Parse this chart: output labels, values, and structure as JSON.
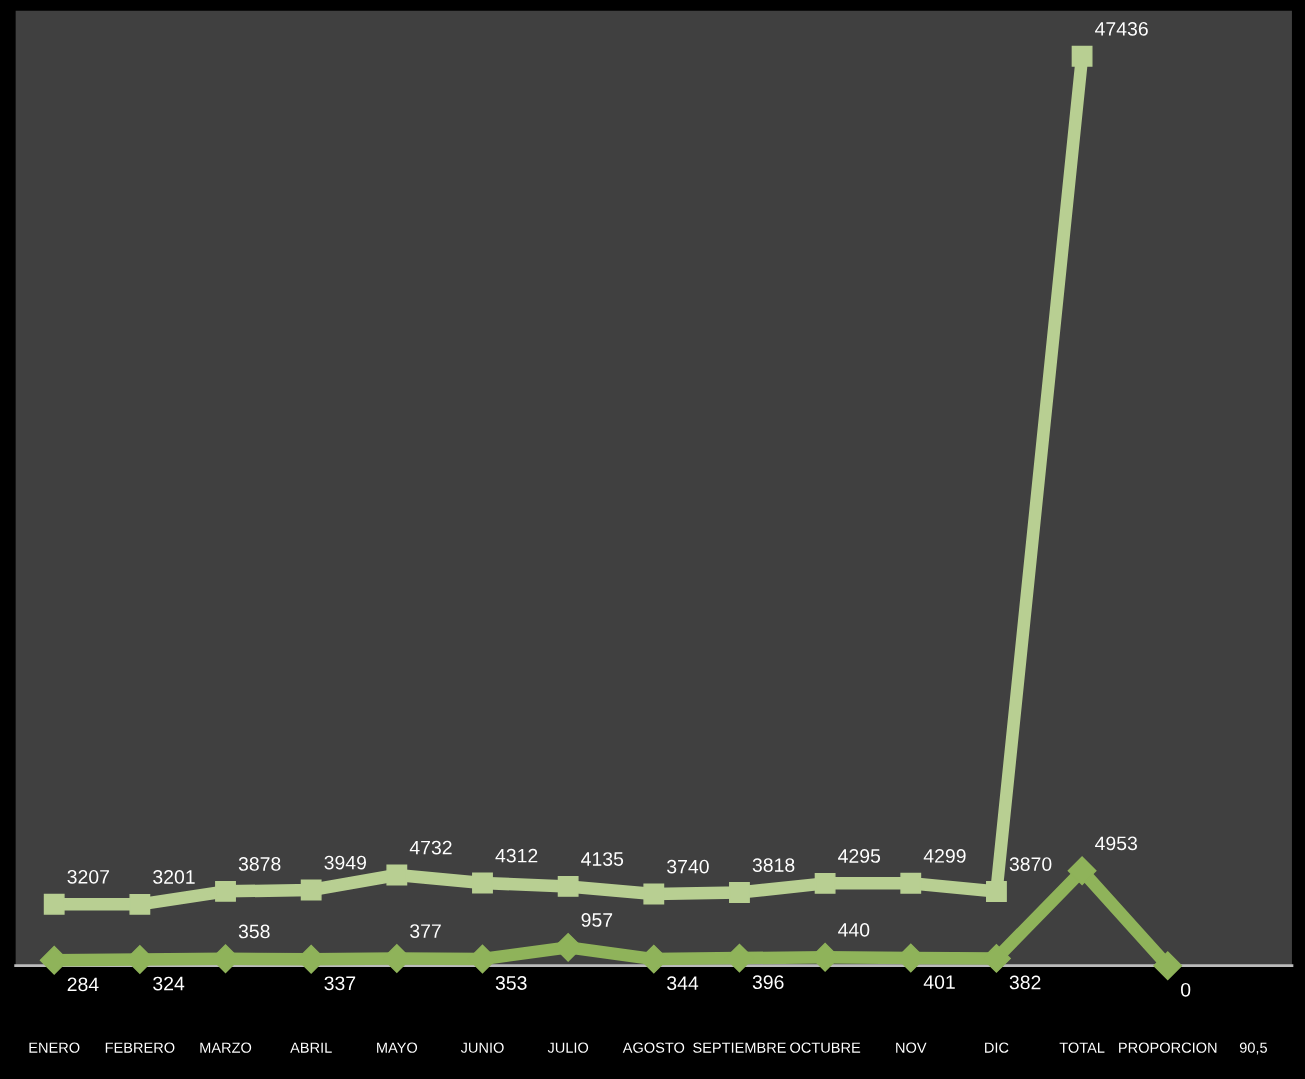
{
  "chart_data": {
    "type": "line",
    "categories": [
      "ENERO",
      "FEBRERO",
      "MARZO",
      "ABRIL",
      "MAYO",
      "JUNIO",
      "JULIO",
      "AGOSTO",
      "SEPTIEMBRE",
      "OCTUBRE",
      "NOV",
      "DIC",
      "TOTAL",
      "PROPORCION",
      "90,5"
    ],
    "series": [
      {
        "color": "#b8cf92",
        "marker": "square",
        "values": [
          3207,
          3201,
          3878,
          3949,
          4732,
          4312,
          4135,
          3740,
          3818,
          4295,
          4299,
          3870,
          47436,
          null,
          null
        ]
      },
      {
        "color": "#8fb35a",
        "marker": "diamond",
        "values": [
          284,
          324,
          358,
          337,
          377,
          353,
          957,
          344,
          396,
          440,
          401,
          382,
          4953,
          0,
          null
        ]
      }
    ],
    "data_labels": true,
    "grid": false,
    "legend": false
  }
}
